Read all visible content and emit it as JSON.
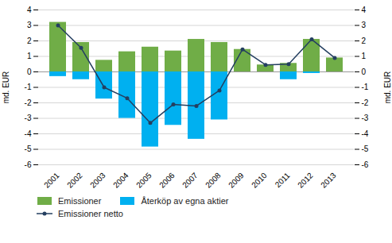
{
  "chart_data": {
    "type": "bar",
    "categories": [
      "2001",
      "2002",
      "2003",
      "2004",
      "2005",
      "2006",
      "2007",
      "2008",
      "2009",
      "2010",
      "2011",
      "2012",
      "2013"
    ],
    "series": [
      {
        "name": "Emissioner",
        "color": "#70AD47",
        "type": "bar",
        "values": [
          3.2,
          1.9,
          0.75,
          1.3,
          1.6,
          1.35,
          2.1,
          1.9,
          1.45,
          0.45,
          0.55,
          2.1,
          0.9
        ]
      },
      {
        "name": "Återköp av egna aktier",
        "color": "#00B0F0",
        "type": "bar",
        "values": [
          -0.3,
          -0.5,
          -1.75,
          -3.0,
          -4.85,
          -3.45,
          -4.35,
          -3.1,
          0.0,
          0.0,
          -0.5,
          -0.1,
          0.0
        ]
      },
      {
        "name": "Emissioner netto",
        "color": "#243F60",
        "type": "line",
        "marker": "o",
        "line_style": "solid",
        "values": [
          3.0,
          1.55,
          -1.0,
          -1.7,
          -3.3,
          -2.1,
          -2.2,
          -1.2,
          1.45,
          0.45,
          0.5,
          2.1,
          0.9
        ]
      }
    ],
    "ylabel": "md. EUR",
    "y2label": "md. EUR",
    "ylim": [
      -6,
      4
    ],
    "yticks": [
      -6,
      -5,
      -4,
      -3,
      -2,
      -1,
      0,
      1,
      2,
      3,
      4
    ],
    "y2lim": [
      -6,
      4
    ],
    "y2ticks": [
      -6,
      -5,
      -4,
      -3,
      -2,
      -1,
      0,
      1,
      2,
      3,
      4
    ],
    "grid": true,
    "legend": "bottom"
  }
}
